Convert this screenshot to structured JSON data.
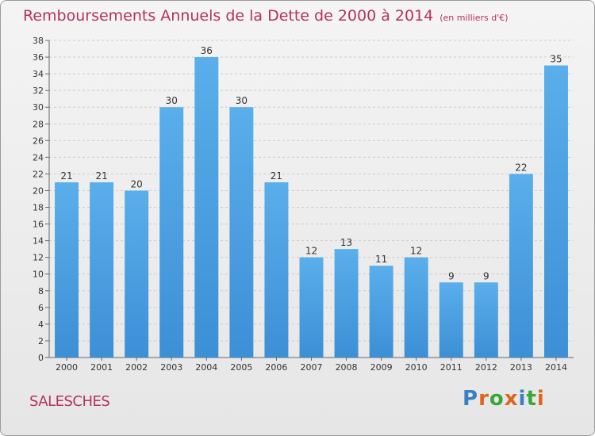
{
  "header": {
    "title": "Remboursements Annuels de la Dette de 2000 à 2014",
    "subtitle": "(en milliers d'€)"
  },
  "footer": {
    "commune": "SALESCHES",
    "logo_text": "Proxiti"
  },
  "colors": {
    "bar": "#3d8fd6",
    "bar_light": "#5aaeea",
    "title": "#b5325e",
    "grid": "#cccccc"
  },
  "chart_data": {
    "type": "bar",
    "categories": [
      "2000",
      "2001",
      "2002",
      "2003",
      "2004",
      "2005",
      "2006",
      "2007",
      "2008",
      "2009",
      "2010",
      "2011",
      "2012",
      "2013",
      "2014"
    ],
    "values": [
      21,
      21,
      20,
      30,
      36,
      30,
      21,
      12,
      13,
      11,
      12,
      9,
      9,
      22,
      35
    ],
    "ylim": [
      0,
      38
    ],
    "ytick_step": 2,
    "grid": true,
    "data_labels": true
  }
}
